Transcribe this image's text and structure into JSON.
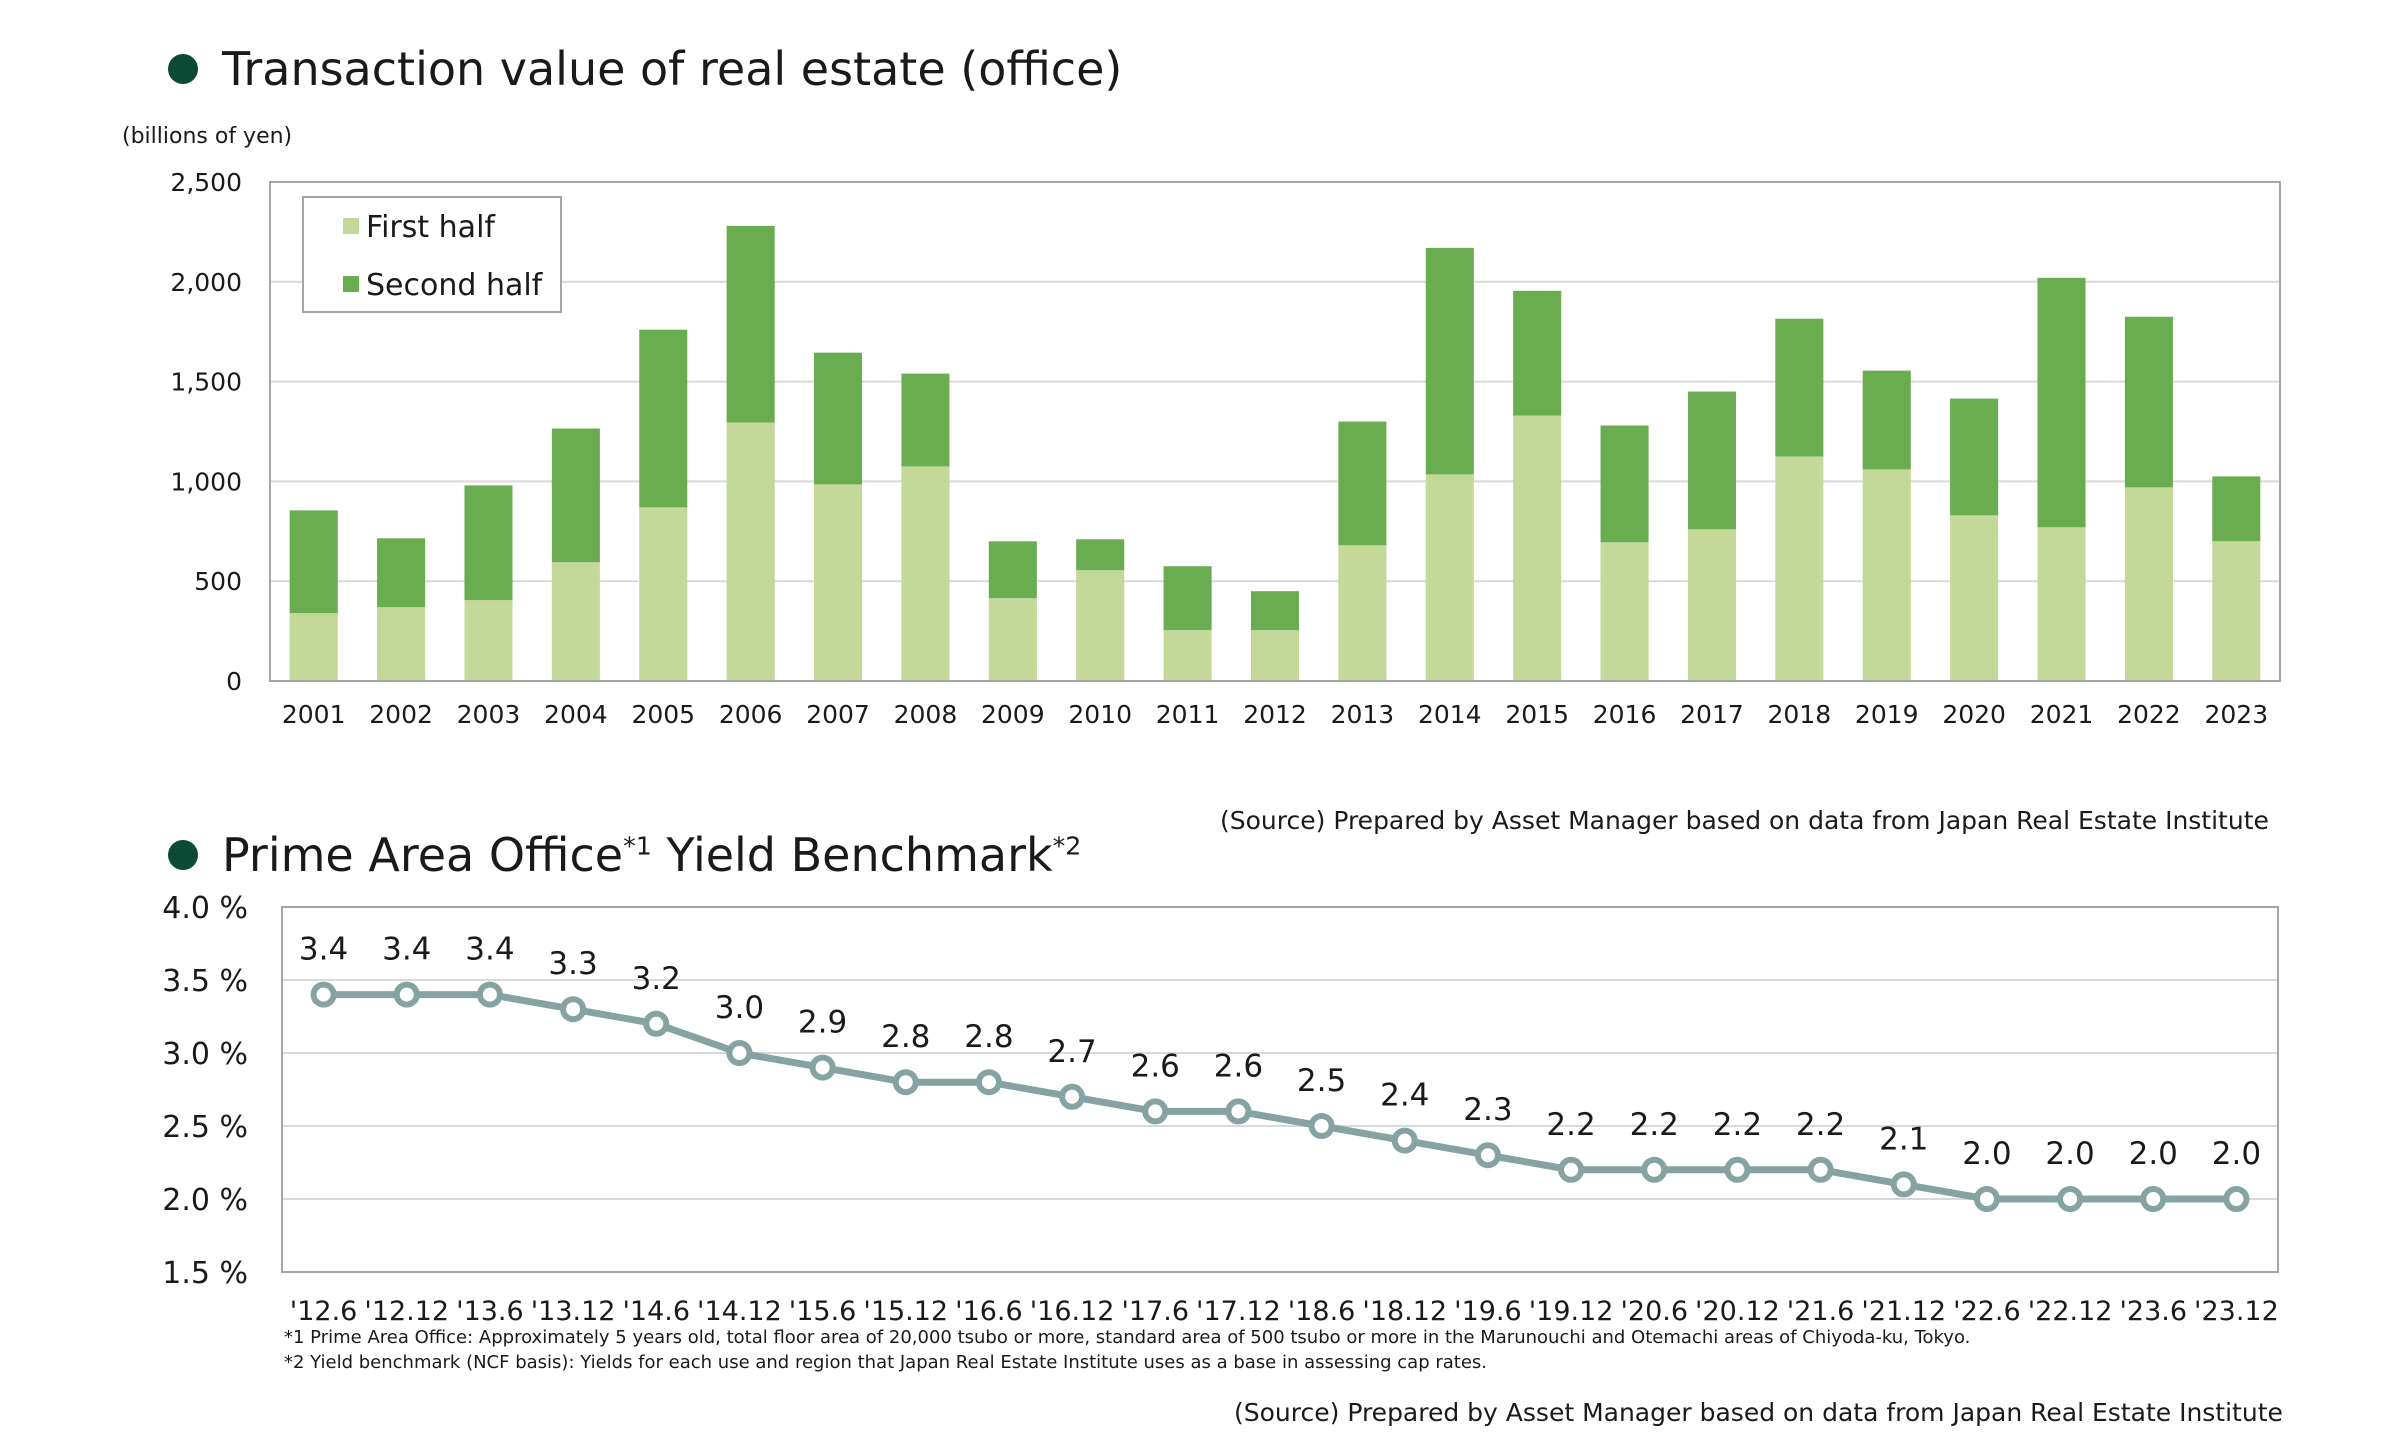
{
  "chart1": {
    "title": "Transaction value of real estate (office)",
    "unit_label": "(billions of yen)",
    "source": "(Source) Prepared by Asset Manager based on data from Japan Real Estate Institute",
    "colors": {
      "first_half": "#c4d89a",
      "second_half": "#6aad50",
      "bullet": "#0c4a36"
    }
  },
  "chart2": {
    "title_main": "Prime Area Office",
    "title_sup1": "*1",
    "title_mid": " Yield Benchmark",
    "title_sup2": "*2",
    "note1": "*1 Prime Area Office: Approximately 5 years old, total floor area of 20,000 tsubo or more, standard area of 500 tsubo or more in the Marunouchi and Otemachi areas of Chiyoda-ku, Tokyo.",
    "note2": "*2 Yield benchmark (NCF basis): Yields for each use and region that Japan Real Estate Institute uses as a base in assessing cap rates.",
    "source": "(Source) Prepared by Asset Manager based on data from Japan Real Estate Institute",
    "colors": {
      "line": "#86a3a3"
    }
  },
  "chart_data": [
    {
      "type": "bar",
      "stacked": true,
      "title": "Transaction value of real estate (office)",
      "ylabel": "(billions of yen)",
      "categories": [
        "2001",
        "2002",
        "2003",
        "2004",
        "2005",
        "2006",
        "2007",
        "2008",
        "2009",
        "2010",
        "2011",
        "2012",
        "2013",
        "2014",
        "2015",
        "2016",
        "2017",
        "2018",
        "2019",
        "2020",
        "2021",
        "2022",
        "2023"
      ],
      "series": [
        {
          "name": "First half",
          "values": [
            340,
            370,
            405,
            595,
            870,
            1295,
            985,
            1075,
            415,
            555,
            255,
            255,
            680,
            1035,
            1330,
            695,
            760,
            1125,
            1060,
            830,
            770,
            970,
            700
          ]
        },
        {
          "name": "Second half",
          "values": [
            515,
            345,
            575,
            670,
            890,
            985,
            660,
            465,
            285,
            155,
            320,
            195,
            620,
            1135,
            625,
            585,
            690,
            690,
            495,
            585,
            1250,
            855,
            325
          ]
        }
      ],
      "ylim": [
        0,
        2500
      ],
      "yticks": [
        0,
        500,
        1000,
        1500,
        2000,
        2500
      ],
      "ytick_labels": [
        "0",
        "500",
        "1,000",
        "1,500",
        "2,000",
        "2,500"
      ],
      "grid": true,
      "legend": "top-left"
    },
    {
      "type": "line",
      "title": "Prime Area Office*1 Yield Benchmark*2",
      "x": [
        "'12.6",
        "'12.12",
        "'13.6",
        "'13.12",
        "'14.6",
        "'14.12",
        "'15.6",
        "'15.12",
        "'16.6",
        "'16.12",
        "'17.6",
        "'17.12",
        "'18.6",
        "'18.12",
        "'19.6",
        "'19.12",
        "'20.6",
        "'20.12",
        "'21.6",
        "'21.12",
        "'22.6",
        "'22.12",
        "'23.6",
        "'23.12"
      ],
      "values": [
        3.4,
        3.4,
        3.4,
        3.3,
        3.2,
        3.0,
        2.9,
        2.8,
        2.8,
        2.7,
        2.6,
        2.6,
        2.5,
        2.4,
        2.3,
        2.2,
        2.2,
        2.2,
        2.2,
        2.1,
        2.0,
        2.0,
        2.0,
        2.0
      ],
      "data_labels": [
        "3.4",
        "3.4",
        "3.4",
        "3.3",
        "3.2",
        "3.0",
        "2.9",
        "2.8",
        "2.8",
        "2.7",
        "2.6",
        "2.6",
        "2.5",
        "2.4",
        "2.3",
        "2.2",
        "2.2",
        "2.2",
        "2.2",
        "2.1",
        "2.0",
        "2.0",
        "2.0",
        "2.0"
      ],
      "ylim": [
        1.5,
        4.0
      ],
      "yticks": [
        1.5,
        2.0,
        2.5,
        3.0,
        3.5,
        4.0
      ],
      "ytick_labels": [
        "1.5 %",
        "2.0 %",
        "2.5 %",
        "3.0 %",
        "3.5 %",
        "4.0 %"
      ],
      "grid": true
    }
  ]
}
